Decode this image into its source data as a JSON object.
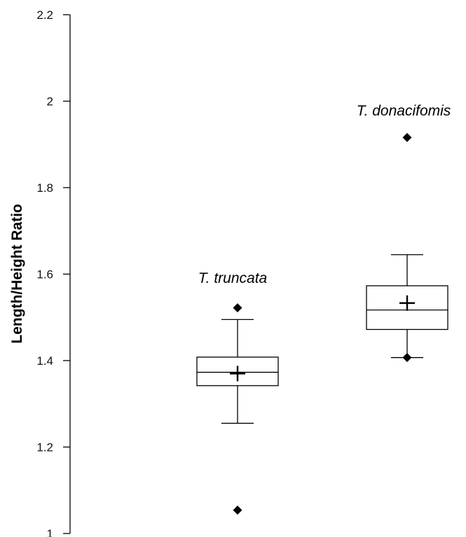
{
  "chart_data": {
    "type": "box",
    "title": "",
    "ylabel": "Length/Height Ratio",
    "xlabel": "",
    "ylim": [
      1,
      2.2
    ],
    "yticks": [
      1,
      1.2,
      1.4,
      1.6,
      1.8,
      2,
      2.2
    ],
    "ytick_labels": [
      "1",
      "1.2",
      "1.4",
      "1.6",
      "1.8",
      "2",
      "2.2"
    ],
    "grid": false,
    "series": [
      {
        "name": "T. truncata",
        "whisker_low": 1.255,
        "q1": 1.342,
        "median": 1.373,
        "q3": 1.408,
        "whisker_high": 1.495,
        "mean": 1.37,
        "outliers": [
          1.522,
          1.054
        ]
      },
      {
        "name": "T. donacifomis",
        "whisker_low": 1.407,
        "q1": 1.472,
        "median": 1.517,
        "q3": 1.573,
        "whisker_high": 1.645,
        "mean": 1.533,
        "outliers": [
          1.916,
          1.407
        ]
      }
    ]
  }
}
